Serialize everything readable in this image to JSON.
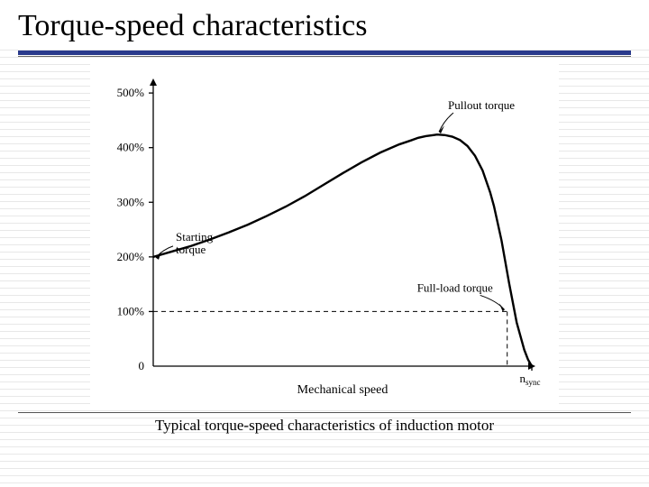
{
  "title": "Torque-speed characteristics",
  "caption": "Typical torque-speed characteristics of induction motor",
  "chart": {
    "type": "line",
    "background_color": "#ffffff",
    "curve_color": "#000000",
    "curve_width": 2.4,
    "axis_color": "#000000",
    "y_ticks": [
      "0",
      "100%",
      "200%",
      "300%",
      "400%",
      "500%"
    ],
    "y_tick_values": [
      0,
      100,
      200,
      300,
      400,
      500
    ],
    "x_axis_label": "Mechanical speed",
    "x_sync_label": "n",
    "x_sync_sub": "sync",
    "xlim": [
      0,
      100
    ],
    "ylim": [
      0,
      520
    ],
    "curve": [
      [
        0,
        200
      ],
      [
        5,
        210
      ],
      [
        10,
        220
      ],
      [
        15,
        232
      ],
      [
        20,
        245
      ],
      [
        25,
        259
      ],
      [
        30,
        275
      ],
      [
        35,
        292
      ],
      [
        40,
        311
      ],
      [
        45,
        332
      ],
      [
        50,
        353
      ],
      [
        55,
        373
      ],
      [
        60,
        391
      ],
      [
        65,
        406
      ],
      [
        68,
        413
      ],
      [
        70,
        418
      ],
      [
        72,
        421
      ],
      [
        74,
        423
      ],
      [
        75,
        424
      ],
      [
        77,
        423
      ],
      [
        79,
        420
      ],
      [
        81,
        414
      ],
      [
        83,
        403
      ],
      [
        85,
        385
      ],
      [
        87,
        358
      ],
      [
        89,
        318
      ],
      [
        90,
        293
      ],
      [
        92,
        230
      ],
      [
        94,
        152
      ],
      [
        96,
        80
      ],
      [
        98,
        30
      ],
      [
        99,
        12
      ],
      [
        100,
        0
      ]
    ],
    "full_load_point": [
      93.5,
      100
    ],
    "annotations": {
      "starting_label": "Starting",
      "starting_label2": "torque",
      "pullout_label": "Pullout torque",
      "fullload_label": "Full-load torque"
    }
  }
}
